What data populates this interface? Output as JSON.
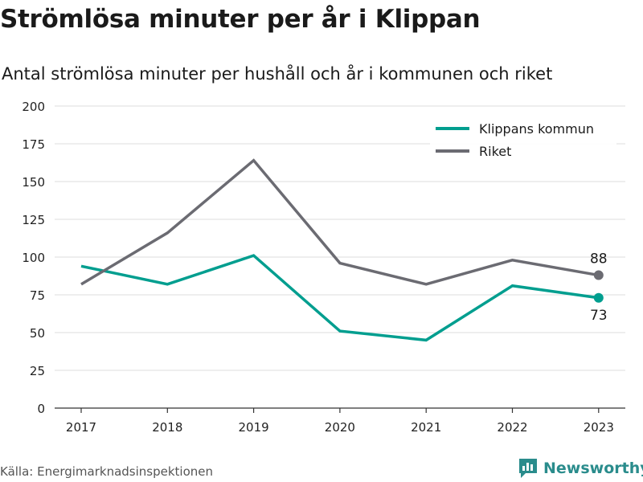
{
  "colors": {
    "klippan": "#009e8f",
    "riket": "#6b6b72",
    "grid": "#dedede",
    "axis": "#333333",
    "brand": "#2a8c8c"
  },
  "footer": {
    "source": "Källa: Energimarknadsinspektionen",
    "brand": "Newsworthy"
  },
  "chart_data": {
    "type": "line",
    "title": "Strömlösa minuter per år i Klippan",
    "subtitle": "Antal strömlösa minuter per hushåll och år i kommunen och riket",
    "x": [
      "2017",
      "2018",
      "2019",
      "2020",
      "2021",
      "2022",
      "2023"
    ],
    "yticks": [
      "0",
      "25",
      "50",
      "75",
      "100",
      "125",
      "150",
      "175",
      "200"
    ],
    "ylim": [
      0,
      200
    ],
    "grid": true,
    "legend": "top-right",
    "series": [
      {
        "name": "Klippans kommun",
        "color": "#009e8f",
        "values": [
          94,
          82,
          101,
          51,
          45,
          81,
          73
        ],
        "end_label": "73"
      },
      {
        "name": "Riket",
        "color": "#6b6b72",
        "values": [
          82,
          116,
          164,
          96,
          82,
          98,
          88
        ],
        "end_label": "88"
      }
    ]
  }
}
